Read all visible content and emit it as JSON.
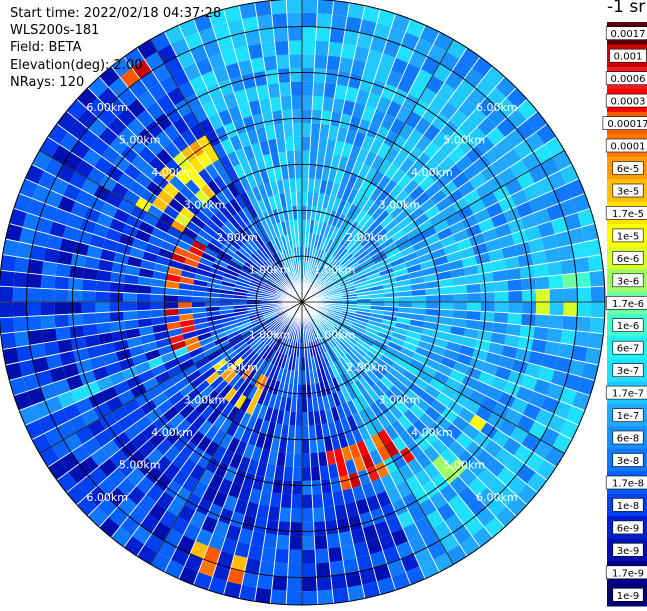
{
  "header": {
    "start_time": "Start time: 2022/02/18 04:37:28",
    "instrument": "WLS200s-181",
    "field": "Field: BETA",
    "elevation": "Elevation(deg): 2.00",
    "nrays": "NRays: 120"
  },
  "colorbar": {
    "units_label": "-1 sr",
    "labels": [
      "0.0017",
      "0.001",
      "0.0006",
      "0.0003",
      "0.00017",
      "0.0001",
      "6e-5",
      "3e-5",
      "1.7e-5",
      "1e-5",
      "6e-6",
      "3e-6",
      "1.7e-6",
      "1e-6",
      "6e-7",
      "3e-7",
      "1.7e-7",
      "1e-7",
      "6e-8",
      "3e-8",
      "1.7e-8",
      "1e-8",
      "6e-9",
      "3e-9",
      "1.7e-9",
      "1e-9"
    ],
    "colors": [
      "#5a0000",
      "#c80000",
      "#ee1c1c",
      "#ff0000",
      "#ff5a00",
      "#ff7800",
      "#ff9c00",
      "#ffbe00",
      "#ffe000",
      "#ffff00",
      "#d8ff28",
      "#a0ff60",
      "#70ffa0",
      "#40ffd0",
      "#20f0f0",
      "#20e0ff",
      "#20c8ff",
      "#20a8ff",
      "#1890ff",
      "#1078ff",
      "#0860ff",
      "#0040f0",
      "#0020d0",
      "#0010b0",
      "#000090",
      "#000070"
    ]
  },
  "chart_data": {
    "type": "heatmap",
    "projection": "polar PPI",
    "field": "BETA",
    "elevation_deg": 2.0,
    "n_rays": 120,
    "range_rings_km": [
      1,
      2,
      3,
      4,
      5,
      6
    ],
    "ring_labels": [
      "1.00km",
      "2.00km",
      "3.00km",
      "4.00km",
      "5.00km",
      "6.00km"
    ],
    "max_range_km": 6.6,
    "color_scale": "log",
    "value_range": [
      1e-09,
      0.0017
    ],
    "background_level": 1e-07,
    "sectors": [
      {
        "az": [
          248,
          332
        ],
        "level": 1e-08,
        "note": "blue sector west-northwest"
      },
      {
        "az": [
          155,
          245
        ],
        "level": 1e-08,
        "note": "blue sector south-southwest"
      },
      {
        "az": [
          245,
          300
        ],
        "r_km": [
          2.4,
          3.1
        ],
        "level": 0.0003,
        "note": "red arc west"
      },
      {
        "az": [
          300,
          330
        ],
        "r_km": [
          3.0,
          4.2
        ],
        "level": 1.7e-05,
        "note": "yellow/red streaks northwest"
      },
      {
        "az": [
          205,
          235
        ],
        "r_km": [
          1.8,
          2.6
        ],
        "level": 3e-05,
        "note": "orange/red arc southwest"
      },
      {
        "az": [
          145,
          170
        ],
        "r_km": [
          3.2,
          4.2
        ],
        "level": 0.0003,
        "note": "red arc south-southeast"
      },
      {
        "az": [
          122,
          140
        ],
        "r_km": [
          4.5,
          5.2
        ],
        "level": 1e-05,
        "note": "yellow/red band southeast"
      },
      {
        "az": [
          190,
          205
        ],
        "r_km": [
          5.6,
          6.3
        ],
        "level": 6e-05,
        "note": "orange patch south-southwest"
      },
      {
        "az": [
          84,
          92
        ],
        "r_km": [
          5.2,
          6.2
        ],
        "level": 1.7e-06,
        "note": "green patch east"
      },
      {
        "az": [
          318,
          328
        ],
        "r_km": [
          5.8,
          6.3
        ],
        "level": 0.0003,
        "note": "red patch north-northwest"
      }
    ]
  }
}
